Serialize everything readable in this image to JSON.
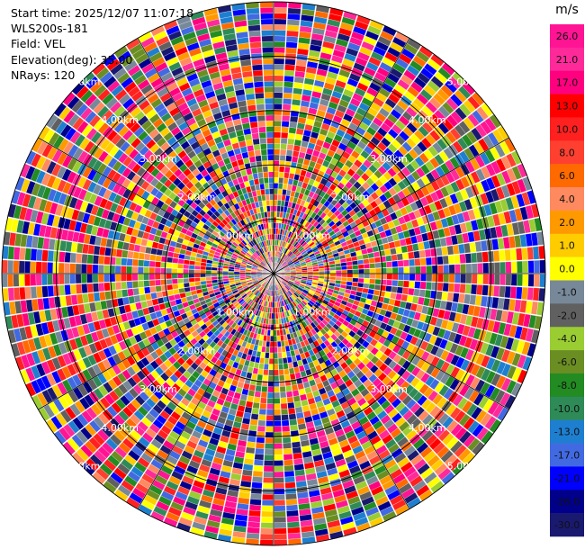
{
  "header": {
    "start_time": "Start time: 2025/12/07 11:07:18",
    "instrument": "WLS200s-181",
    "field": "Field: VEL",
    "elevation": "Elevation(deg): 35.00",
    "nrays": "NRays: 120"
  },
  "chart_data": {
    "type": "heatmap",
    "projection": "polar-ppi",
    "field": "VEL",
    "unit": "m/s",
    "n_rays": 120,
    "max_range_km": 5.0,
    "range_ring_labels": [
      "1.00km",
      "2.00km",
      "3.00km",
      "4.00km",
      "5.00km"
    ],
    "colorbar": {
      "title": "m/s",
      "ticks": [
        "26.0",
        "21.0",
        "17.0",
        "13.0",
        "10.0",
        "8.0",
        "6.0",
        "4.0",
        "2.0",
        "1.0",
        "0.0",
        "-1.0",
        "-2.0",
        "-4.0",
        "-6.0",
        "-8.0",
        "-10.0",
        "-13.0",
        "-17.0",
        "-21.0",
        "-26.0",
        "-30.0"
      ],
      "colors_top_to_bottom": [
        "#ff1493",
        "#ff2a9a",
        "#ff007f",
        "#ff0000",
        "#ff2020",
        "#ff4030",
        "#ff6a00",
        "#ff8a60",
        "#ff9900",
        "#ffcc00",
        "#ffff00",
        "#778899",
        "#606060",
        "#9acd32",
        "#6b8e23",
        "#228b22",
        "#2e8b57",
        "#1e7fd0",
        "#4169e1",
        "#0000ff",
        "#00008b",
        "#191970"
      ]
    },
    "grid": true
  }
}
